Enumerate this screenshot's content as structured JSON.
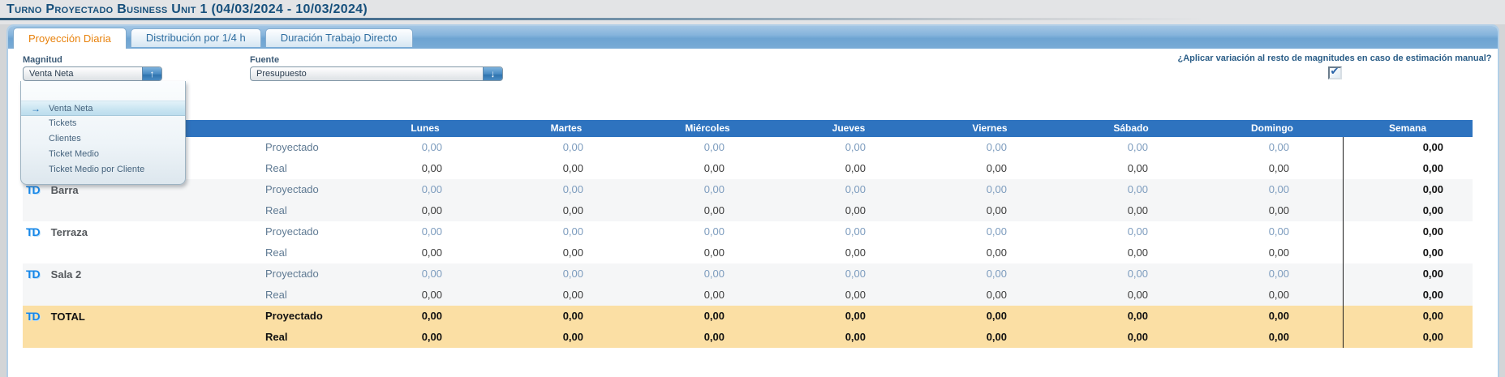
{
  "title": "Turno Proyectado Business Unit 1 (04/03/2024 - 10/03/2024)",
  "tabs": [
    {
      "label": "Proyección Diaria",
      "active": true
    },
    {
      "label": "Distribución por 1/4 h",
      "active": false
    },
    {
      "label": "Duración Trabajo Directo",
      "active": false
    }
  ],
  "filters": {
    "magnitud": {
      "label": "Magnitud",
      "value": "Venta Neta",
      "trigger_icon": "up-arrow",
      "trigger_glyph": "↑"
    },
    "fuente": {
      "label": "Fuente",
      "value": "Presupuesto",
      "trigger_icon": "down-arrow",
      "trigger_glyph": "↓"
    }
  },
  "magnitud_dropdown": {
    "options": [
      {
        "label": "Venta Neta",
        "selected": true
      },
      {
        "label": "Tickets",
        "selected": false
      },
      {
        "label": "Clientes",
        "selected": false
      },
      {
        "label": "Ticket Medio",
        "selected": false
      },
      {
        "label": "Ticket Medio por Cliente",
        "selected": false
      }
    ],
    "selected_arrow_glyph": "→"
  },
  "variation_question": {
    "text": "¿Aplicar variación al resto de magnitudes en caso de estimación manual?",
    "checked": true,
    "check_glyph": "✔"
  },
  "table": {
    "day_headers": [
      "Lunes",
      "Martes",
      "Miércoles",
      "Jueves",
      "Viernes",
      "Sábado",
      "Domingo"
    ],
    "week_header": "Semana",
    "groups": [
      {
        "name": "",
        "is_total": false,
        "rows": [
          {
            "label": "Proyectado",
            "days": [
              "0,00",
              "0,00",
              "0,00",
              "0,00",
              "0,00",
              "0,00",
              "0,00"
            ],
            "semana": "0,00"
          },
          {
            "label": "Real",
            "days": [
              "0,00",
              "0,00",
              "0,00",
              "0,00",
              "0,00",
              "0,00",
              "0,00"
            ],
            "semana": "0,00"
          }
        ]
      },
      {
        "name": "Barra",
        "is_total": false,
        "rows": [
          {
            "label": "Proyectado",
            "days": [
              "0,00",
              "0,00",
              "0,00",
              "0,00",
              "0,00",
              "0,00",
              "0,00"
            ],
            "semana": "0,00"
          },
          {
            "label": "Real",
            "days": [
              "0,00",
              "0,00",
              "0,00",
              "0,00",
              "0,00",
              "0,00",
              "0,00"
            ],
            "semana": "0,00"
          }
        ]
      },
      {
        "name": "Terraza",
        "is_total": false,
        "rows": [
          {
            "label": "Proyectado",
            "days": [
              "0,00",
              "0,00",
              "0,00",
              "0,00",
              "0,00",
              "0,00",
              "0,00"
            ],
            "semana": "0,00"
          },
          {
            "label": "Real",
            "days": [
              "0,00",
              "0,00",
              "0,00",
              "0,00",
              "0,00",
              "0,00",
              "0,00"
            ],
            "semana": "0,00"
          }
        ]
      },
      {
        "name": "Sala 2",
        "is_total": false,
        "rows": [
          {
            "label": "Proyectado",
            "days": [
              "0,00",
              "0,00",
              "0,00",
              "0,00",
              "0,00",
              "0,00",
              "0,00"
            ],
            "semana": "0,00"
          },
          {
            "label": "Real",
            "days": [
              "0,00",
              "0,00",
              "0,00",
              "0,00",
              "0,00",
              "0,00",
              "0,00"
            ],
            "semana": "0,00"
          }
        ]
      },
      {
        "name": "TOTAL",
        "is_total": true,
        "rows": [
          {
            "label": "Proyectado",
            "days": [
              "0,00",
              "0,00",
              "0,00",
              "0,00",
              "0,00",
              "0,00",
              "0,00"
            ],
            "semana": "0,00"
          },
          {
            "label": "Real",
            "days": [
              "0,00",
              "0,00",
              "0,00",
              "0,00",
              "0,00",
              "0,00",
              "0,00"
            ],
            "semana": "0,00"
          }
        ]
      }
    ]
  },
  "colors": {
    "header-bar": "#2e73bf",
    "total-row-bg": "#fbdfa4",
    "accent-orange": "#e8820c",
    "selection-blue": "#c8e4f1"
  }
}
